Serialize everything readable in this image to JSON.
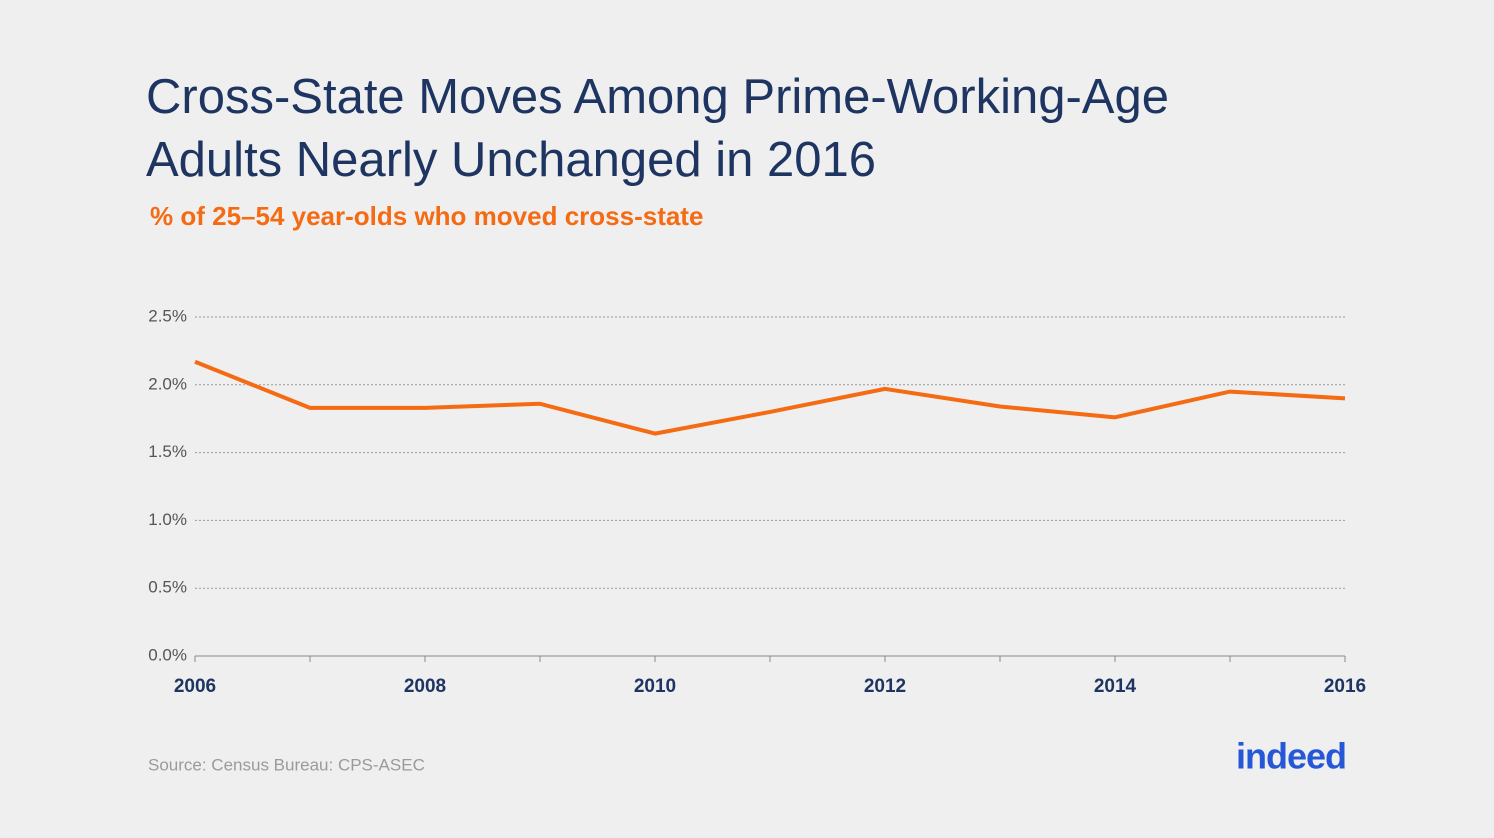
{
  "chart_data": {
    "type": "line",
    "title": [
      "Cross-State Moves Among Prime-Working-Age",
      "Adults Nearly Unchanged in 2016"
    ],
    "subtitle": "% of 25–54 year-olds who moved cross-state",
    "x": [
      2006,
      2007,
      2008,
      2009,
      2010,
      2011,
      2012,
      2013,
      2014,
      2015,
      2016
    ],
    "series": [
      {
        "name": "Cross-state movers",
        "color": "#f46b13",
        "values": [
          2.17,
          1.83,
          1.83,
          1.86,
          1.64,
          1.8,
          1.97,
          1.84,
          1.76,
          1.95,
          1.9
        ]
      }
    ],
    "xlim": [
      2006,
      2016
    ],
    "xticks": [
      2006,
      2008,
      2010,
      2012,
      2014,
      2016
    ],
    "ylim": [
      0,
      2.5
    ],
    "yticks": [
      {
        "value": 0,
        "label": "0.0%"
      },
      {
        "value": 0.5,
        "label": "0.5%"
      },
      {
        "value": 1,
        "label": "1.0%"
      },
      {
        "value": 1.5,
        "label": "1.5%"
      },
      {
        "value": 2,
        "label": "2.0%"
      },
      {
        "value": 2.5,
        "label": "2.5%"
      }
    ],
    "grid": true,
    "source": "Source: Census Bureau: CPS-ASEC",
    "logo": "indeed"
  }
}
